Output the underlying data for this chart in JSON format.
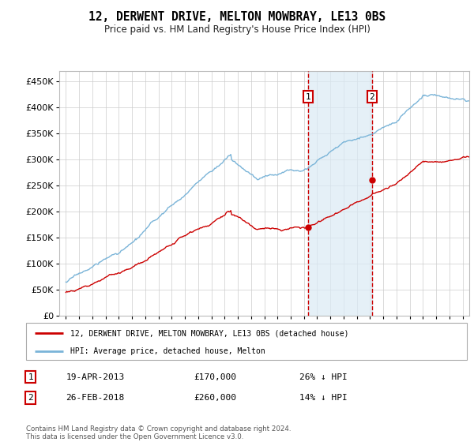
{
  "title": "12, DERWENT DRIVE, MELTON MOWBRAY, LE13 0BS",
  "subtitle": "Price paid vs. HM Land Registry's House Price Index (HPI)",
  "ylabel_ticks": [
    "£0",
    "£50K",
    "£100K",
    "£150K",
    "£200K",
    "£250K",
    "£300K",
    "£350K",
    "£400K",
    "£450K"
  ],
  "ytick_values": [
    0,
    50000,
    100000,
    150000,
    200000,
    250000,
    300000,
    350000,
    400000,
    450000
  ],
  "xlim": [
    1994.5,
    2025.5
  ],
  "ylim": [
    0,
    470000
  ],
  "transaction1": {
    "date_year": 2013.3,
    "price": 170000,
    "label": "1",
    "date_str": "19-APR-2013",
    "pct": "26% ↓ HPI"
  },
  "transaction2": {
    "date_year": 2018.15,
    "price": 260000,
    "label": "2",
    "date_str": "26-FEB-2018",
    "pct": "14% ↓ HPI"
  },
  "hpi_color": "#7ab4d8",
  "price_color": "#cc0000",
  "vline_color": "#cc0000",
  "shade_color": "#daeaf5",
  "legend_label_red": "12, DERWENT DRIVE, MELTON MOWBRAY, LE13 0BS (detached house)",
  "legend_label_blue": "HPI: Average price, detached house, Melton",
  "footnote": "Contains HM Land Registry data © Crown copyright and database right 2024.\nThis data is licensed under the Open Government Licence v3.0.",
  "xtick_years": [
    1995,
    1996,
    1997,
    1998,
    1999,
    2000,
    2001,
    2002,
    2003,
    2004,
    2005,
    2006,
    2007,
    2008,
    2009,
    2010,
    2011,
    2012,
    2013,
    2014,
    2015,
    2016,
    2017,
    2018,
    2019,
    2020,
    2021,
    2022,
    2023,
    2024,
    2025
  ],
  "figsize": [
    6.0,
    5.6
  ],
  "dpi": 100
}
